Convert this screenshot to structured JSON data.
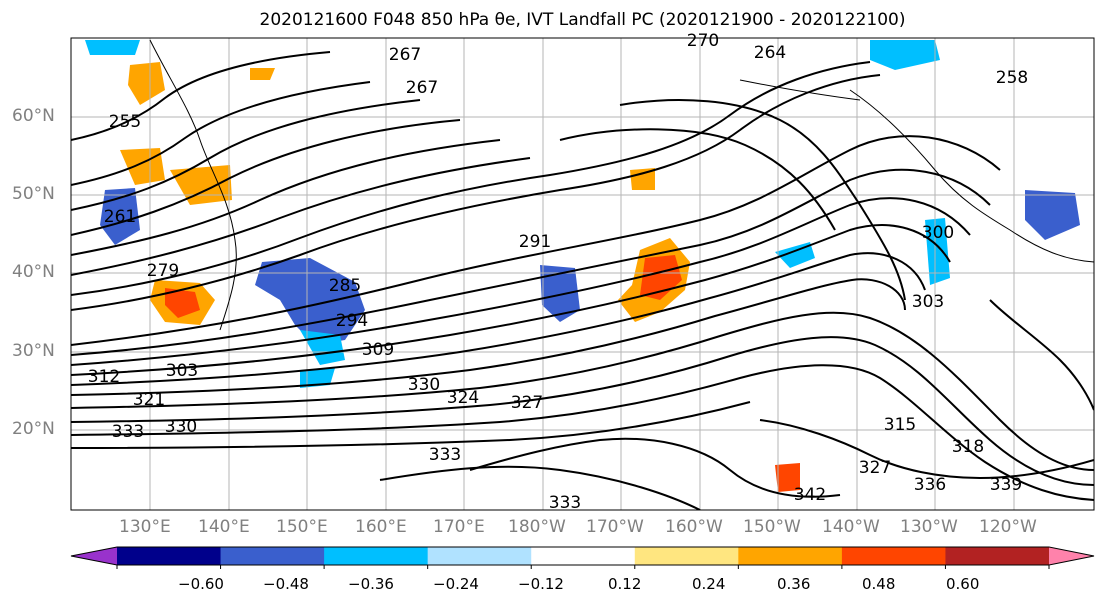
{
  "title": "2020121600 F048 850 hPa θe, IVT Landfall PC (2020121900 - 2020122100)",
  "lat_labels": [
    "60°N",
    "50°N",
    "40°N",
    "30°N",
    "20°N"
  ],
  "lon_labels": [
    "130°E",
    "140°E",
    "150°E",
    "160°E",
    "170°E",
    "180°W",
    "170°W",
    "160°W",
    "150°W",
    "140°W",
    "130°W",
    "120°W"
  ],
  "contour_labels": [
    "267",
    "264",
    "270",
    "267",
    "255",
    "258",
    "261",
    "291",
    "300",
    "279",
    "285",
    "294",
    "303",
    "309",
    "303",
    "312",
    "321",
    "324",
    "327",
    "330",
    "330",
    "333",
    "333",
    "315",
    "318",
    "327",
    "336",
    "339",
    "342",
    "333"
  ],
  "colorbar": {
    "ticks": [
      "−0.60",
      "−0.48",
      "−0.36",
      "−0.24",
      "−0.12",
      "0.12",
      "0.24",
      "0.36",
      "0.48",
      "0.60"
    ],
    "colors": [
      "#9932cc",
      "#00008b",
      "#3a5fcd",
      "#00bfff",
      "#b0e2ff",
      "#ffffff",
      "#ffe680",
      "#ffa500",
      "#ff4500",
      "#b22222",
      "#ff82ab"
    ]
  }
}
